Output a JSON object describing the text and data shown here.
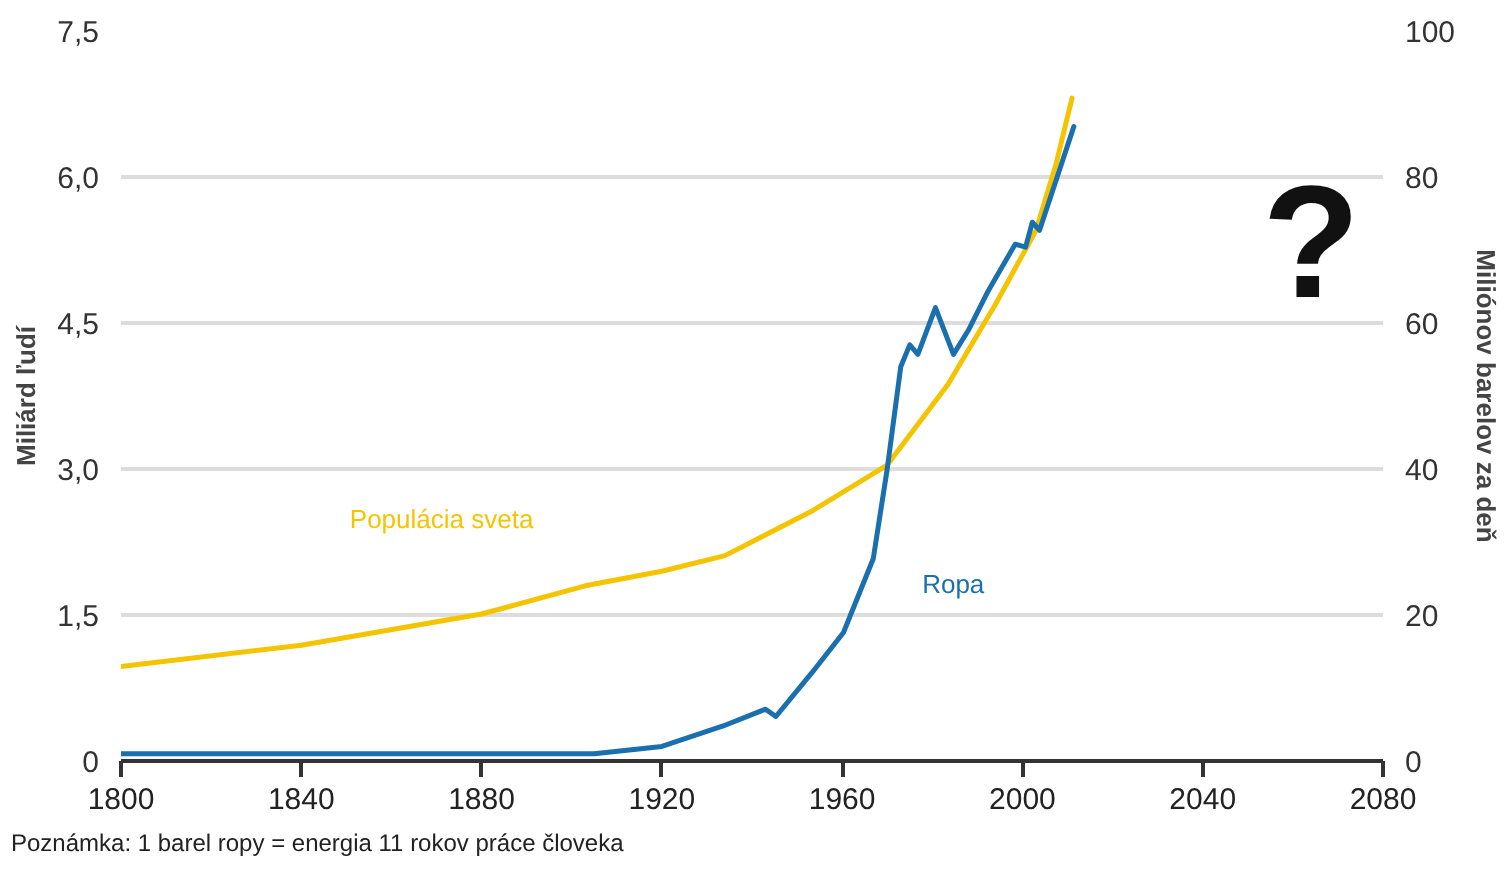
{
  "chart_data": {
    "type": "line",
    "ylabel": "Miliárd ľudí",
    "y2label": "Miliónov barelov za deň",
    "xlim": [
      1800,
      2080
    ],
    "xticks": [
      1800,
      1840,
      1880,
      1920,
      1960,
      2000,
      2040,
      2080
    ],
    "ylim": [
      0,
      7.5
    ],
    "yticks": [
      {
        "value": 0,
        "label": "0"
      },
      {
        "value": 1.5,
        "label": "1,5"
      },
      {
        "value": 3,
        "label": "3,0"
      },
      {
        "value": 4.5,
        "label": "4,5"
      },
      {
        "value": 6,
        "label": "6,0"
      },
      {
        "value": 7.5,
        "label": "7,5"
      }
    ],
    "y2lim": [
      0,
      100
    ],
    "y2ticks": [
      0,
      20,
      40,
      60,
      80,
      100
    ],
    "grid": "y",
    "line_style": "solid",
    "series": [
      {
        "name": "Populácia sveta",
        "color": "#f5c400",
        "x": [
          1800,
          1840,
          1880,
          1903,
          1920,
          1934,
          1953,
          1970,
          1983.5,
          1994,
          2003,
          2007.5,
          2011
        ],
        "values": [
          0.97,
          1.19,
          1.51,
          1.8,
          1.95,
          2.11,
          2.56,
          3.04,
          3.87,
          4.69,
          5.45,
          6.14,
          6.81
        ]
      },
      {
        "name": "Ropa",
        "color": "#1a6faf",
        "axis": "y2",
        "x": [
          1800,
          1860,
          1905,
          1920,
          1933.6,
          1943,
          1945.3,
          1953.3,
          1960.3,
          1966.9,
          1970,
          1973,
          1975,
          1976.8,
          1980.7,
          1984.7,
          1988,
          1992.4,
          1998.4,
          2000.7,
          2002.2,
          2003.8,
          2011.4
        ],
        "values": [
          1,
          1,
          1,
          2,
          4.8,
          7.1,
          6.1,
          12.1,
          17.6,
          27.7,
          40,
          54,
          57,
          55.7,
          62.1,
          55.7,
          59,
          64.4,
          70.8,
          70.4,
          73.8,
          72.7,
          86.9
        ]
      }
    ],
    "annotations": [
      "?",
      "Poznámka: 1 barel ropy = energia 11 rokov práce človeka"
    ]
  }
}
